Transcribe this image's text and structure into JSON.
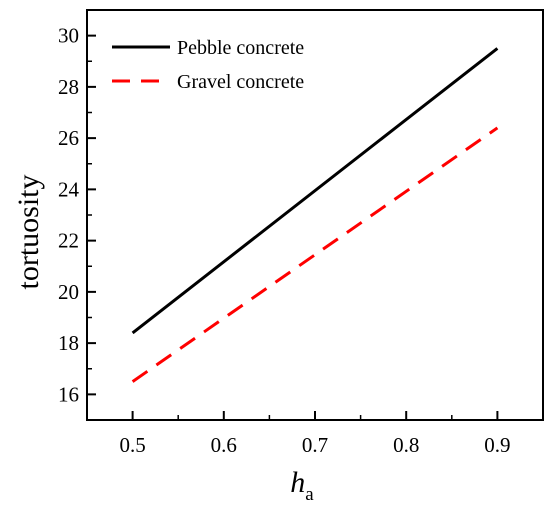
{
  "chart_data": {
    "type": "line",
    "title": "",
    "xlabel": "h",
    "xlabel_subscript": "a",
    "ylabel": "tortuosity",
    "xlim": [
      0.45,
      0.95
    ],
    "ylim": [
      15,
      31
    ],
    "x_ticks": [
      0.5,
      0.6,
      0.7,
      0.8,
      0.9
    ],
    "x_tick_labels": [
      "0.5",
      "0.6",
      "0.7",
      "0.8",
      "0.9"
    ],
    "y_ticks": [
      16,
      18,
      20,
      22,
      24,
      26,
      28,
      30
    ],
    "y_tick_labels": [
      "16",
      "18",
      "20",
      "22",
      "24",
      "26",
      "28",
      "30"
    ],
    "grid": false,
    "legend_position": "top-left",
    "series": [
      {
        "name": "Pebble concrete",
        "x": [
          0.5,
          0.9
        ],
        "y": [
          18.4,
          29.5
        ],
        "color": "#000000",
        "dash": "solid"
      },
      {
        "name": "Gravel concrete",
        "x": [
          0.5,
          0.9
        ],
        "y": [
          16.5,
          26.4
        ],
        "color": "#ff0000",
        "dash": "dashed"
      }
    ]
  }
}
